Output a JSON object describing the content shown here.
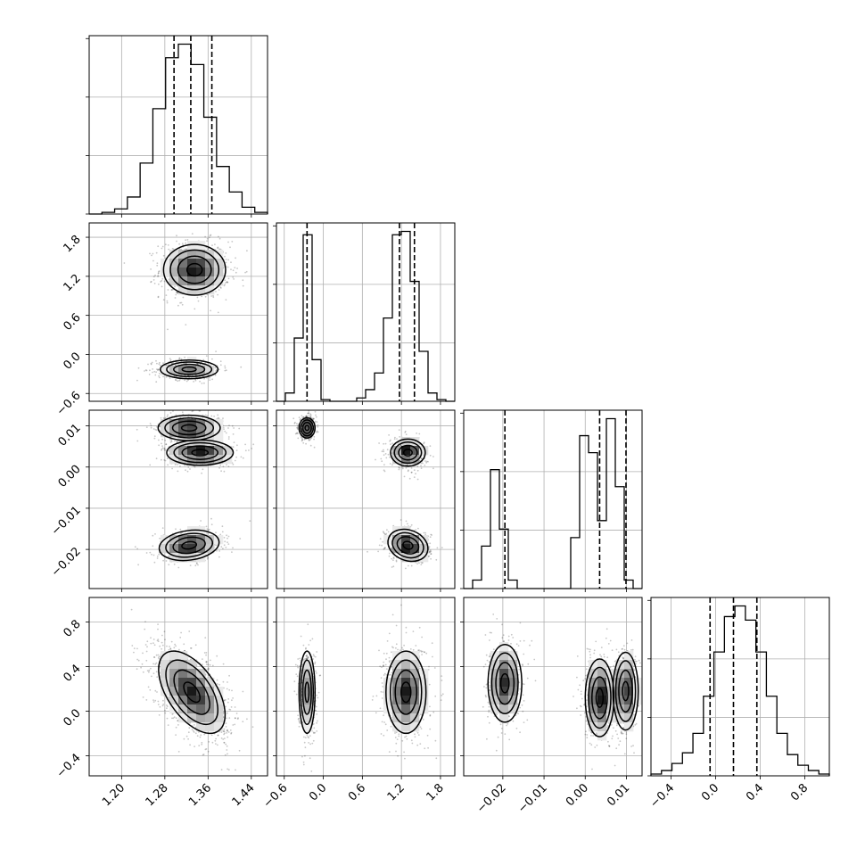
{
  "chart_data": {
    "type": "corner",
    "grid": true,
    "params": [
      {
        "range": [
          1.14,
          1.47
        ],
        "ticks": [
          1.2,
          1.28,
          1.36,
          1.44
        ],
        "tick_labels": [
          "1.20",
          "1.28",
          "1.36",
          "1.44"
        ],
        "hist": {
          "values": [
            0,
            0.01,
            0.03,
            0.1,
            0.3,
            0.62,
            0.92,
            1.0,
            0.88,
            0.57,
            0.28,
            0.13,
            0.04,
            0.01
          ],
          "quantiles": [
            1.297,
            1.328,
            1.367
          ]
        }
      },
      {
        "range": [
          -0.72,
          2.02
        ],
        "ticks": [
          -0.6,
          0.0,
          0.6,
          1.2,
          1.8
        ],
        "tick_labels": [
          "−0.6",
          "0.0",
          "0.6",
          "1.2",
          "1.8"
        ],
        "hist": {
          "values": [
            0,
            0.05,
            0.38,
            1.0,
            0.25,
            0.01,
            0,
            0,
            0,
            0.02,
            0.07,
            0.17,
            0.5,
            1.0,
            1.02,
            0.72,
            0.3,
            0.05,
            0.01,
            0
          ],
          "quantiles": [
            -0.25,
            1.17,
            1.4
          ]
        }
      },
      {
        "range": [
          -0.0295,
          0.0138
        ],
        "ticks": [
          -0.02,
          -0.01,
          0.0,
          0.01
        ],
        "tick_labels": [
          "−0.02",
          "−0.01",
          "0.00",
          "0.01"
        ],
        "hist": {
          "values": [
            0,
            0.05,
            0.25,
            0.7,
            0.35,
            0.05,
            0,
            0,
            0,
            0,
            0,
            0,
            0.3,
            0.9,
            0.8,
            0.4,
            1.0,
            0.6,
            0.05,
            0
          ],
          "quantiles": [
            -0.0195,
            0.0035,
            0.0099
          ]
        }
      },
      {
        "range": [
          -0.58,
          1.02
        ],
        "ticks": [
          -0.4,
          0.0,
          0.4,
          0.8
        ],
        "tick_labels": [
          "−0.4",
          "0.0",
          "0.4",
          "0.8"
        ],
        "hist": {
          "values": [
            0.01,
            0.03,
            0.07,
            0.13,
            0.24,
            0.45,
            0.7,
            0.9,
            0.96,
            0.88,
            0.7,
            0.45,
            0.24,
            0.12,
            0.06,
            0.03,
            0.01
          ],
          "quantiles": [
            -0.05,
            0.16,
            0.37
          ]
        }
      }
    ],
    "pairs": [
      {
        "row": 1,
        "col": 0,
        "modes": [
          {
            "x": 1.335,
            "y": 1.3,
            "sx": 0.028,
            "sy": 0.19,
            "w": 0.62,
            "rho": 0
          },
          {
            "x": 1.325,
            "y": -0.23,
            "sx": 0.026,
            "sy": 0.07,
            "w": 0.38,
            "rho": 0
          }
        ]
      },
      {
        "row": 2,
        "col": 0,
        "modes": [
          {
            "x": 1.325,
            "y": 0.0095,
            "sx": 0.028,
            "sy": 0.0015,
            "w": 0.34,
            "rho": 0
          },
          {
            "x": 1.345,
            "y": 0.0035,
            "sx": 0.03,
            "sy": 0.0015,
            "w": 0.34,
            "rho": 0
          },
          {
            "x": 1.325,
            "y": -0.019,
            "sx": 0.027,
            "sy": 0.0018,
            "w": 0.32,
            "rho": 0.2
          }
        ]
      },
      {
        "row": 2,
        "col": 1,
        "modes": [
          {
            "x": -0.25,
            "y": 0.0095,
            "sx": 0.06,
            "sy": 0.0012,
            "w": 0.34,
            "rho": 0
          },
          {
            "x": 1.3,
            "y": 0.0035,
            "sx": 0.13,
            "sy": 0.0016,
            "w": 0.33,
            "rho": 0
          },
          {
            "x": 1.3,
            "y": -0.019,
            "sx": 0.15,
            "sy": 0.0019,
            "w": 0.33,
            "rho": -0.2
          }
        ]
      },
      {
        "row": 3,
        "col": 0,
        "modes": [
          {
            "x": 1.33,
            "y": 0.17,
            "sx": 0.03,
            "sy": 0.18,
            "w": 1.0,
            "rho": -0.55
          }
        ]
      },
      {
        "row": 3,
        "col": 1,
        "modes": [
          {
            "x": -0.25,
            "y": 0.17,
            "sx": 0.06,
            "sy": 0.18,
            "w": 0.35,
            "rho": 0
          },
          {
            "x": 1.27,
            "y": 0.17,
            "sx": 0.15,
            "sy": 0.18,
            "w": 0.65,
            "rho": 0
          }
        ]
      },
      {
        "row": 3,
        "col": 2,
        "modes": [
          {
            "x": -0.0195,
            "y": 0.25,
            "sx": 0.002,
            "sy": 0.17,
            "w": 0.32,
            "rho": 0
          },
          {
            "x": 0.0035,
            "y": 0.12,
            "sx": 0.0017,
            "sy": 0.17,
            "w": 0.36,
            "rho": 0
          },
          {
            "x": 0.0098,
            "y": 0.18,
            "sx": 0.0015,
            "sy": 0.17,
            "w": 0.32,
            "rho": 0
          }
        ]
      }
    ]
  }
}
